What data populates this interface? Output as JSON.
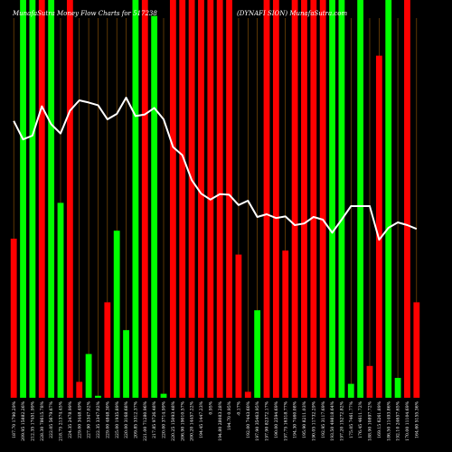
{
  "chart_data": {
    "type": "bar",
    "title_left": "MunafaSutra  Money Flow  Charts for 517238",
    "title_right": "(DYNAFI                              SION) MunafaSutra.com",
    "colors": {
      "up": "#00ff00",
      "down": "#ff0000",
      "line": "#ffffff",
      "grid": "#c8780a",
      "background": "#000000"
    },
    "ylim": [
      0,
      100
    ],
    "grid": true,
    "categories": [
      "187.70 1790.29%",
      "209.95 15882.26%",
      "212.35 17451.99%",
      "228.30 78615.78%",
      "222.05 5679.67%",
      "218.75 21374.45%",
      "224.35 2478.99%",
      "229.00 3448.49%",
      "227.90 3347.02%",
      "222.35 3347.02%",
      "229.00 4848.30%",
      "225.00 1935.89%",
      "220.00 3168.68%",
      "209.85 3312.37%",
      "221.00 71280.96%",
      "217.85 9726.48%",
      "220.00 3714.99%",
      "220.25 15093.48%",
      "206.90 19010.57%",
      "200.20 14457.22%",
      "194.45 1447.23%",
      "0.95%",
      "194.80 28083.28%",
      "194.70 0.95%",
      "-0.17%",
      "192.00 7443.60%",
      "197.90 35463.95%",
      "197.90 82372.17%",
      "190.00 2594.69%",
      "197.75 16318.77%",
      "194.30 7460.08%",
      "195.90 8211.03%",
      "190.05 11732.29%",
      "192.95 3117.69%",
      "193.50 49818.64%",
      "197.20 15272.82%",
      "175.05 7461.77%",
      "176.45 4611.72%",
      "188.90 10897.72%",
      "169.15 6261.89%",
      "186.50 11493.86%",
      "192.10 24657.65%",
      "170.00 11104.69%",
      "164.60 5155.36%"
    ],
    "bars": [
      {
        "value": 40,
        "dir": "down"
      },
      {
        "value": 100,
        "dir": "up"
      },
      {
        "value": 100,
        "dir": "up"
      },
      {
        "value": 100,
        "dir": "down"
      },
      {
        "value": 100,
        "dir": "up"
      },
      {
        "value": 49,
        "dir": "up"
      },
      {
        "value": 100,
        "dir": "down"
      },
      {
        "value": 4,
        "dir": "down"
      },
      {
        "value": 11,
        "dir": "up"
      },
      {
        "value": 0.5,
        "dir": "up"
      },
      {
        "value": 24,
        "dir": "down"
      },
      {
        "value": 42,
        "dir": "up"
      },
      {
        "value": 17,
        "dir": "up"
      },
      {
        "value": 100,
        "dir": "up"
      },
      {
        "value": 100,
        "dir": "down"
      },
      {
        "value": 96,
        "dir": "up"
      },
      {
        "value": 1,
        "dir": "up"
      },
      {
        "value": 100,
        "dir": "down"
      },
      {
        "value": 100,
        "dir": "down"
      },
      {
        "value": 100,
        "dir": "down"
      },
      {
        "value": 100,
        "dir": "down"
      },
      {
        "value": 100,
        "dir": "down"
      },
      {
        "value": 100,
        "dir": "down"
      },
      {
        "value": 100,
        "dir": "down"
      },
      {
        "value": 36,
        "dir": "down"
      },
      {
        "value": 1.5,
        "dir": "down"
      },
      {
        "value": 22,
        "dir": "up"
      },
      {
        "value": 100,
        "dir": "down"
      },
      {
        "value": 103,
        "dir": "down"
      },
      {
        "value": 37,
        "dir": "down"
      },
      {
        "value": 100,
        "dir": "down"
      },
      {
        "value": 100,
        "dir": "down"
      },
      {
        "value": 100,
        "dir": "down"
      },
      {
        "value": 100,
        "dir": "down"
      },
      {
        "value": 100,
        "dir": "up"
      },
      {
        "value": 100,
        "dir": "up"
      },
      {
        "value": 3.5,
        "dir": "up"
      },
      {
        "value": 100,
        "dir": "up"
      },
      {
        "value": 8,
        "dir": "down"
      },
      {
        "value": 86,
        "dir": "down"
      },
      {
        "value": 100,
        "dir": "up"
      },
      {
        "value": 5,
        "dir": "up"
      },
      {
        "value": 100,
        "dir": "down"
      },
      {
        "value": 24,
        "dir": "down"
      }
    ],
    "price_line": [
      187.7,
      184.3,
      185.0,
      190.4,
      187.1,
      185.4,
      189.6,
      191.5,
      191.1,
      190.6,
      188.0,
      189.0,
      192.0,
      188.6,
      188.9,
      190.1,
      188.0,
      182.9,
      181.4,
      176.8,
      174.3,
      173.2,
      174.2,
      174.1,
      172.2,
      173.0,
      170.0,
      170.5,
      169.8,
      170.1,
      168.5,
      168.8,
      170.0,
      169.5,
      167.1,
      169.5,
      172.0,
      172.0,
      172.0,
      165.8,
      168.0,
      169.0,
      168.5,
      167.8
    ],
    "price_range": [
      160,
      200
    ]
  }
}
